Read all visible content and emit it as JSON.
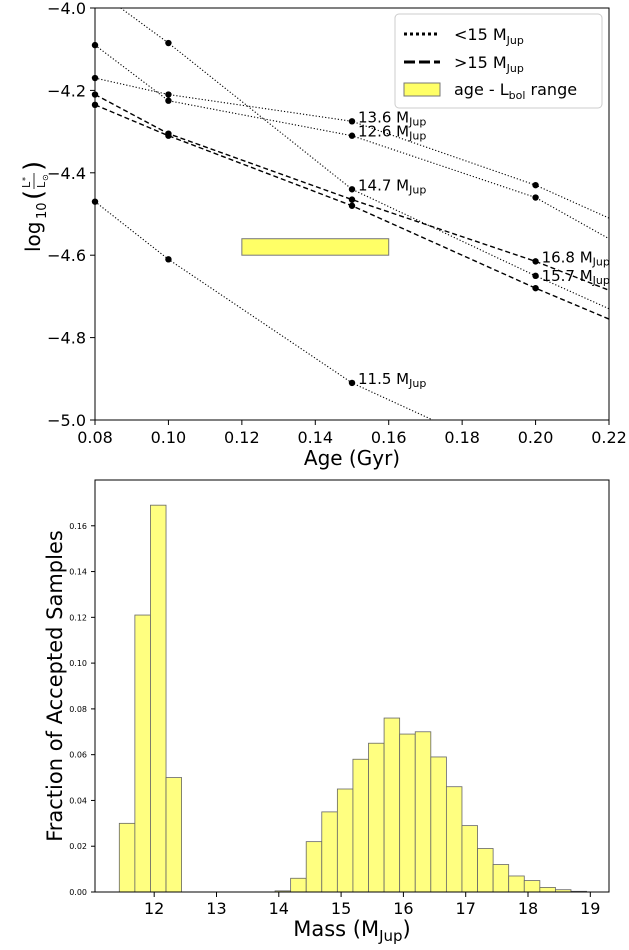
{
  "chart_data": [
    {
      "type": "line",
      "xlabel": "Age (Gyr)",
      "ylabel": {
        "prefix": "log",
        "sub": "10",
        "num": "L",
        "num_sub": "*",
        "den": "L",
        "den_sub": "⊙"
      },
      "xlim": [
        0.08,
        0.22
      ],
      "ylim": [
        -5.0,
        -4.0
      ],
      "xticks": [
        0.08,
        0.1,
        0.12,
        0.14,
        0.16,
        0.18,
        0.2,
        0.22
      ],
      "xtick_labels": [
        "0.08",
        "0.10",
        "0.12",
        "0.14",
        "0.16",
        "0.18",
        "0.20",
        "0.22"
      ],
      "yticks": [
        -4.0,
        -4.2,
        -4.4,
        -4.6,
        -4.8,
        -5.0
      ],
      "ytick_labels": [
        "−4.0",
        "−4.2",
        "−4.4",
        "−4.6",
        "−4.8",
        "−5.0"
      ],
      "legend_position": "top-right",
      "legend": [
        {
          "style": "dotted",
          "label": "<15 M",
          "sub": "Jup"
        },
        {
          "style": "dashed",
          "label": ">15 M",
          "sub": "Jup"
        },
        {
          "style": "box",
          "label": "age - L",
          "sub": "bol",
          "suffix": " range",
          "color": "#ffff66"
        }
      ],
      "age_lbol_range": {
        "x": [
          0.12,
          0.16
        ],
        "y": [
          -4.6,
          -4.56
        ],
        "color": "#ffff66"
      },
      "series": [
        {
          "label": "13.6 M",
          "sub": "Jup",
          "style": "dotted",
          "x": [
            0.08,
            0.1,
            0.15,
            0.2,
            0.22
          ],
          "y": [
            -4.17,
            -4.21,
            -4.275,
            -4.43,
            -4.51
          ],
          "points": [
            0.08,
            0.1,
            0.15,
            0.2
          ],
          "label_x": 0.15
        },
        {
          "label": "12.6 M",
          "sub": "Jup",
          "style": "dotted",
          "x": [
            0.08,
            0.1,
            0.15,
            0.2,
            0.22
          ],
          "y": [
            -4.09,
            -4.225,
            -4.31,
            -4.46,
            -4.56
          ],
          "points": [
            0.08,
            0.1,
            0.15,
            0.2
          ],
          "label_x": 0.15
        },
        {
          "label": "14.7 M",
          "sub": "Jup",
          "style": "dotted",
          "x": [
            0.087,
            0.1,
            0.15,
            0.2,
            0.22
          ],
          "y": [
            -4.0,
            -4.085,
            -4.44,
            -4.65,
            -4.73
          ],
          "points": [
            0.1,
            0.15,
            0.2
          ],
          "label_x": 0.15
        },
        {
          "label": "16.8 M",
          "sub": "Jup",
          "style": "dashed",
          "x": [
            0.08,
            0.1,
            0.15,
            0.2,
            0.22
          ],
          "y": [
            -4.21,
            -4.305,
            -4.465,
            -4.615,
            -4.685
          ],
          "points": [
            0.08,
            0.1,
            0.15,
            0.2
          ],
          "label_x": 0.2
        },
        {
          "label": "15.7 M",
          "sub": "Jup",
          "style": "dashed",
          "x": [
            0.08,
            0.1,
            0.15,
            0.2,
            0.22
          ],
          "y": [
            -4.235,
            -4.31,
            -4.48,
            -4.68,
            -4.755
          ],
          "points": [
            0.08,
            0.1,
            0.15,
            0.2
          ],
          "label_x": 0.2,
          "label_y": -4.66
        },
        {
          "label": "11.5 M",
          "sub": "Jup",
          "style": "dotted",
          "x": [
            0.08,
            0.1,
            0.15,
            0.172
          ],
          "y": [
            -4.47,
            -4.61,
            -4.91,
            -5.0
          ],
          "points": [
            0.08,
            0.1,
            0.15
          ],
          "label_x": 0.15
        }
      ]
    },
    {
      "type": "bar",
      "xlabel": {
        "text": "Mass (M",
        "sub": "Jup",
        "suffix": ")"
      },
      "ylabel": "Fraction of Accepted Samples",
      "xlim": [
        11.05,
        19.3
      ],
      "ylim": [
        0,
        0.18
      ],
      "xticks": [
        12,
        13,
        14,
        15,
        16,
        17,
        18,
        19
      ],
      "xtick_labels": [
        "12",
        "13",
        "14",
        "15",
        "16",
        "17",
        "18",
        "19"
      ],
      "yticks": [
        0,
        0.02,
        0.04,
        0.06,
        0.08,
        0.1,
        0.12,
        0.14,
        0.16
      ],
      "ytick_labels": [
        "0.00",
        "0.02",
        "0.04",
        "0.06",
        "0.08",
        "0.10",
        "0.12",
        "0.14",
        "0.16"
      ],
      "bar_color": "#ffff80",
      "bin_width": 0.25,
      "bin_starts": [
        11.44,
        11.69,
        11.94,
        12.19,
        13.94,
        14.19,
        14.44,
        14.69,
        14.94,
        15.19,
        15.44,
        15.69,
        15.94,
        16.19,
        16.44,
        16.69,
        16.94,
        17.19,
        17.44,
        17.69,
        17.94,
        18.19,
        18.44,
        18.69
      ],
      "values": [
        0.03,
        0.121,
        0.169,
        0.05,
        0.0005,
        0.006,
        0.022,
        0.035,
        0.045,
        0.058,
        0.065,
        0.076,
        0.069,
        0.07,
        0.059,
        0.046,
        0.029,
        0.019,
        0.012,
        0.007,
        0.005,
        0.002,
        0.001,
        0.0003
      ]
    }
  ]
}
